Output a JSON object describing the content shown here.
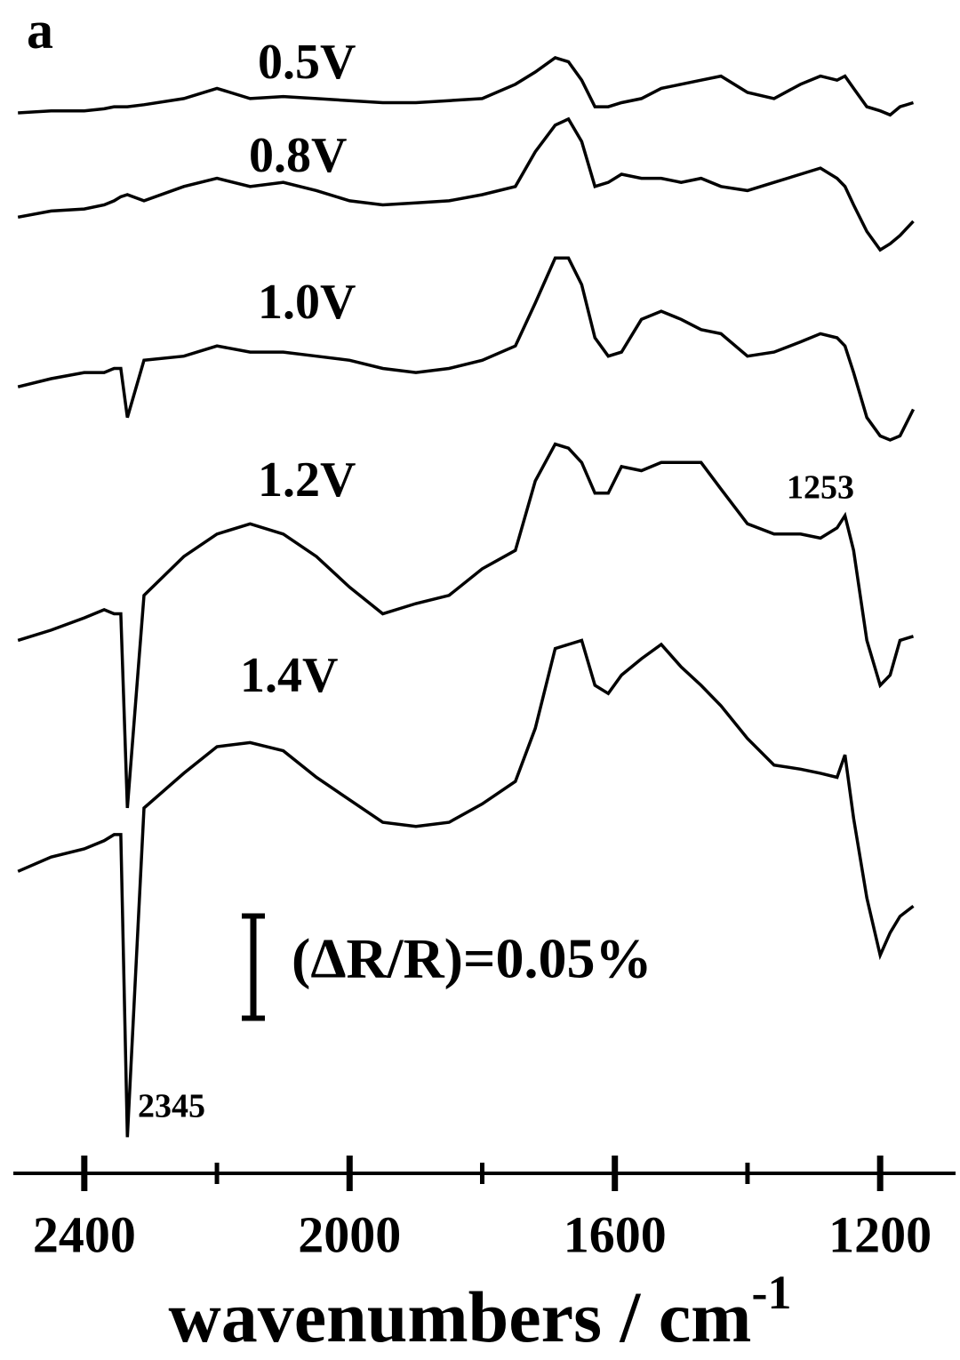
{
  "chart_data": {
    "type": "line",
    "panel_label": "a",
    "x_label": "wavenumbers / cm",
    "x_label_superscript": "-1",
    "xlim": [
      2507,
      1093
    ],
    "xticks": [
      2400,
      2000,
      1600,
      1200
    ],
    "xminor_ticks": [
      2200,
      1800,
      1400
    ],
    "ylim": [
      0,
      0.56
    ],
    "annotations": [
      "2345",
      "1253"
    ],
    "scale_bar": {
      "value": 0.05,
      "label": "(ΔR/R)=0.05%"
    },
    "x": [
      2500,
      2450,
      2400,
      2370,
      2355,
      2345,
      2335,
      2310,
      2250,
      2200,
      2150,
      2100,
      2050,
      2000,
      1950,
      1900,
      1850,
      1800,
      1750,
      1720,
      1690,
      1670,
      1650,
      1630,
      1610,
      1590,
      1560,
      1530,
      1500,
      1470,
      1440,
      1400,
      1360,
      1320,
      1290,
      1265,
      1253,
      1240,
      1220,
      1200,
      1185,
      1170,
      1150
    ],
    "series": [
      {
        "name": "0.5V",
        "color": "#000000",
        "values": [
          0.51,
          0.511,
          0.511,
          0.512,
          0.513,
          0.513,
          0.513,
          0.514,
          0.517,
          0.522,
          0.517,
          0.518,
          0.517,
          0.516,
          0.515,
          0.515,
          0.516,
          0.517,
          0.524,
          0.53,
          0.537,
          0.535,
          0.526,
          0.513,
          0.513,
          0.515,
          0.517,
          0.522,
          0.524,
          0.526,
          0.528,
          0.52,
          0.517,
          0.524,
          0.528,
          0.526,
          0.528,
          0.522,
          0.513,
          0.511,
          0.509,
          0.513,
          0.515
        ]
      },
      {
        "name": "0.8V",
        "color": "#000000",
        "values": [
          0.459,
          0.462,
          0.463,
          0.465,
          0.467,
          0.469,
          0.47,
          0.467,
          0.474,
          0.478,
          0.474,
          0.476,
          0.472,
          0.467,
          0.465,
          0.466,
          0.467,
          0.47,
          0.474,
          0.491,
          0.504,
          0.507,
          0.496,
          0.474,
          0.476,
          0.48,
          0.478,
          0.478,
          0.476,
          0.478,
          0.474,
          0.472,
          0.476,
          0.48,
          0.483,
          0.478,
          0.474,
          0.465,
          0.452,
          0.443,
          0.446,
          0.45,
          0.457
        ]
      },
      {
        "name": "1.0V",
        "color": "#000000",
        "values": [
          0.376,
          0.38,
          0.383,
          0.383,
          0.385,
          0.385,
          0.361,
          0.389,
          0.391,
          0.396,
          0.393,
          0.393,
          0.391,
          0.389,
          0.385,
          0.383,
          0.385,
          0.389,
          0.396,
          0.417,
          0.439,
          0.439,
          0.426,
          0.4,
          0.391,
          0.393,
          0.409,
          0.413,
          0.409,
          0.404,
          0.402,
          0.391,
          0.393,
          0.398,
          0.402,
          0.4,
          0.396,
          0.383,
          0.361,
          0.352,
          0.35,
          0.352,
          0.365
        ]
      },
      {
        "name": "1.2V",
        "color": "#000000",
        "values": [
          0.252,
          0.257,
          0.263,
          0.267,
          0.265,
          0.265,
          0.17,
          0.274,
          0.293,
          0.304,
          0.309,
          0.304,
          0.293,
          0.278,
          0.265,
          0.27,
          0.274,
          0.287,
          0.296,
          0.33,
          0.348,
          0.346,
          0.339,
          0.324,
          0.324,
          0.337,
          0.335,
          0.339,
          0.339,
          0.339,
          0.326,
          0.309,
          0.304,
          0.304,
          0.302,
          0.307,
          0.313,
          0.296,
          0.252,
          0.23,
          0.235,
          0.252,
          0.254
        ]
      },
      {
        "name": "1.4V",
        "color": "#000000",
        "values": [
          0.139,
          0.146,
          0.15,
          0.154,
          0.157,
          0.157,
          0.009,
          0.17,
          0.187,
          0.2,
          0.202,
          0.198,
          0.185,
          0.174,
          0.163,
          0.161,
          0.163,
          0.172,
          0.183,
          0.209,
          0.248,
          0.25,
          0.252,
          0.23,
          0.226,
          0.235,
          0.243,
          0.25,
          0.239,
          0.23,
          0.22,
          0.204,
          0.191,
          0.189,
          0.187,
          0.185,
          0.196,
          0.165,
          0.126,
          0.098,
          0.109,
          0.117,
          0.122
        ]
      }
    ]
  }
}
